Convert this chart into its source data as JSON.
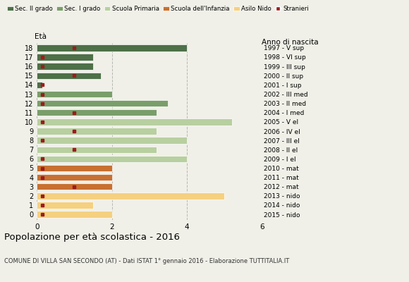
{
  "ages": [
    18,
    17,
    16,
    15,
    14,
    13,
    12,
    11,
    10,
    9,
    8,
    7,
    6,
    5,
    4,
    3,
    2,
    1,
    0
  ],
  "anno_nascita": [
    "1997 - V sup",
    "1998 - VI sup",
    "1999 - III sup",
    "2000 - II sup",
    "2001 - I sup",
    "2002 - III med",
    "2003 - II med",
    "2004 - I med",
    "2005 - V el",
    "2006 - IV el",
    "2007 - III el",
    "2008 - II el",
    "2009 - I el",
    "2010 - mat",
    "2011 - mat",
    "2012 - mat",
    "2013 - nido",
    "2014 - nido",
    "2015 - nido"
  ],
  "values": [
    4.0,
    1.5,
    1.5,
    1.7,
    0.15,
    2.0,
    3.5,
    3.2,
    5.2,
    3.2,
    4.0,
    3.2,
    4.0,
    2.0,
    2.0,
    2.0,
    5.0,
    1.5,
    2.0
  ],
  "stranieri": [
    1.0,
    0.15,
    0.15,
    1.0,
    0.15,
    0.15,
    0.15,
    1.0,
    0.15,
    1.0,
    0.15,
    1.0,
    0.15,
    0.15,
    0.15,
    1.0,
    0.15,
    0.15,
    0.15
  ],
  "bar_colors": [
    "#4e7048",
    "#4e7048",
    "#4e7048",
    "#4e7048",
    "#4e7048",
    "#7a9e6a",
    "#7a9e6a",
    "#7a9e6a",
    "#b8cfa0",
    "#b8cfa0",
    "#b8cfa0",
    "#b8cfa0",
    "#b8cfa0",
    "#c87030",
    "#c87030",
    "#c87030",
    "#f5d080",
    "#f5d080",
    "#f5d080"
  ],
  "legend_labels": [
    "Sec. II grado",
    "Sec. I grado",
    "Scuola Primaria",
    "Scuola dell'Infanzia",
    "Asilo Nido",
    "Stranieri"
  ],
  "legend_colors": [
    "#4e7048",
    "#7a9e6a",
    "#b8cfa0",
    "#c87030",
    "#f5d080",
    "#9b1c1c"
  ],
  "stranieri_color": "#9b1c1c",
  "title": "Popolazione per età scolastica - 2016",
  "subtitle": "COMUNE DI VILLA SAN SECONDO (AT) - Dati ISTAT 1° gennaio 2016 - Elaborazione TUTTITALIA.IT",
  "xlabel_eta": "Età",
  "xlabel_anno": "Anno di nascita",
  "xlim": [
    0,
    6
  ],
  "xticks": [
    0,
    2,
    4,
    6
  ],
  "bg_color": "#f0f0e8"
}
